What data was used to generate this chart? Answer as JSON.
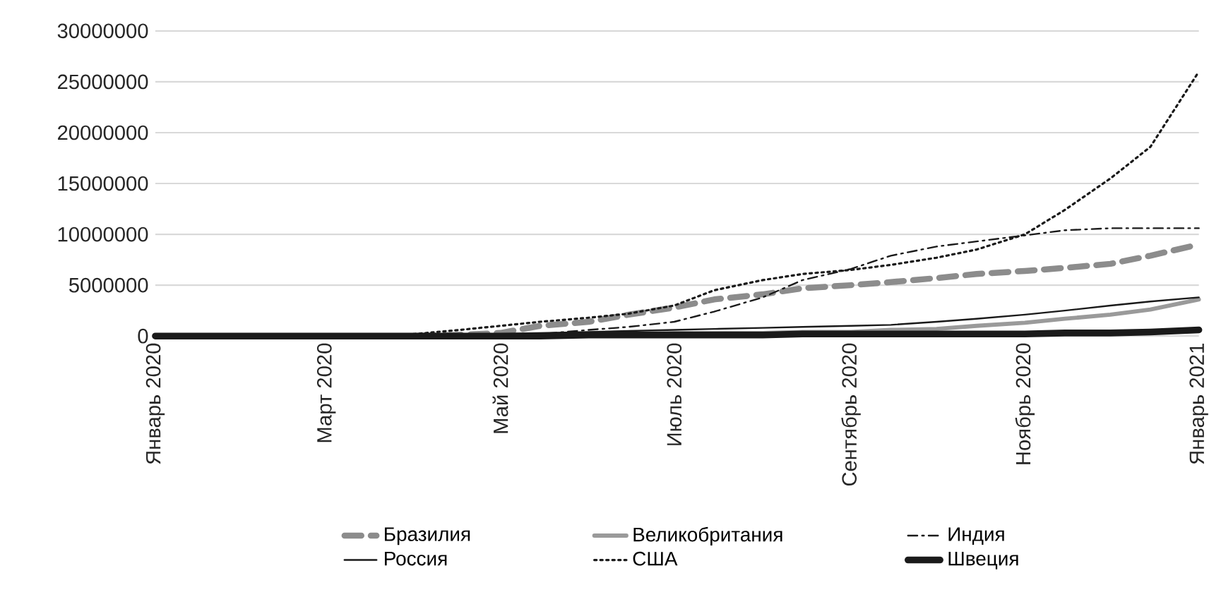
{
  "chart_data": {
    "type": "line",
    "x": [
      "2020-01-01",
      "2020-02-01",
      "2020-03-01",
      "2020-03-13",
      "2020-04-01",
      "2020-04-15",
      "2020-05-01",
      "2020-05-15",
      "2020-06-01",
      "2020-06-15",
      "2020-07-01",
      "2020-07-15",
      "2020-08-01",
      "2020-08-15",
      "2020-09-01",
      "2020-09-15",
      "2020-10-01",
      "2020-10-15",
      "2020-11-01",
      "2020-11-15",
      "2020-12-01",
      "2020-12-15",
      "2021-01-01"
    ],
    "series": [
      {
        "name": "Бразилия",
        "color": "#8c8c8c",
        "line_style": "dashed",
        "values": [
          0,
          0,
          0,
          0,
          0,
          100000,
          300000,
          1000000,
          1400000,
          2100000,
          2800000,
          3600000,
          4100000,
          4700000,
          5000000,
          5300000,
          5700000,
          6100000,
          6400000,
          6700000,
          7100000,
          7900000,
          9000000
        ]
      },
      {
        "name": "Великобритания",
        "color": "#9a9a9a",
        "line_style": "solid",
        "values": [
          0,
          0,
          0,
          0,
          0,
          0,
          100000,
          100000,
          200000,
          200000,
          300000,
          300000,
          300000,
          400000,
          400000,
          600000,
          700000,
          1000000,
          1300000,
          1700000,
          2100000,
          2600000,
          3600000
        ]
      },
      {
        "name": "Индия",
        "color": "#1a1a1a",
        "line_style": "dashdot",
        "values": [
          0,
          0,
          0,
          0,
          0,
          0,
          0,
          200000,
          600000,
          900000,
          1400000,
          2400000,
          3800000,
          5500000,
          6600000,
          7900000,
          8800000,
          9300000,
          9900000,
          10400000,
          10600000,
          10600000,
          10600000
        ]
      },
      {
        "name": "Россия",
        "color": "#1a1a1a",
        "line_style": "solid",
        "values": [
          0,
          0,
          0,
          0,
          0,
          0,
          200000,
          300000,
          400000,
          500000,
          600000,
          700000,
          800000,
          900000,
          1000000,
          1100000,
          1400000,
          1700000,
          2100000,
          2500000,
          3000000,
          3400000,
          3800000
        ]
      },
      {
        "name": "США",
        "color": "#1a1a1a",
        "line_style": "dotted",
        "values": [
          0,
          0,
          0,
          0,
          200000,
          550000,
          1000000,
          1400000,
          1800000,
          2200000,
          3000000,
          4500000,
          5500000,
          6100000,
          6500000,
          7000000,
          7700000,
          8500000,
          10000000,
          12400000,
          15500000,
          18600000,
          26000000
        ]
      },
      {
        "name": "Швеция",
        "color": "#1a1a1a",
        "line_style": "solid",
        "values": [
          0,
          0,
          0,
          0,
          0,
          0,
          0,
          0,
          100000,
          100000,
          100000,
          100000,
          100000,
          200000,
          200000,
          200000,
          200000,
          200000,
          200000,
          300000,
          300000,
          400000,
          600000
        ]
      }
    ],
    "xlim": [
      "2020-01-01",
      "2021-01-01"
    ],
    "xticks": [
      {
        "value": "2020-01-01",
        "label": "Январь 2020"
      },
      {
        "value": "2020-03-01",
        "label": "Март 2020"
      },
      {
        "value": "2020-05-01",
        "label": "Май 2020"
      },
      {
        "value": "2020-07-01",
        "label": "Июль 2020"
      },
      {
        "value": "2020-09-01",
        "label": "Сентябрь 2020"
      },
      {
        "value": "2020-11-01",
        "label": "Ноябрь 2020"
      },
      {
        "value": "2021-01-01",
        "label": "Январь 2021"
      }
    ],
    "ylim": [
      0,
      30000000
    ],
    "yticks": [
      0,
      5000000,
      10000000,
      15000000,
      20000000,
      25000000,
      30000000
    ],
    "grid": "y",
    "legend": "bottom",
    "marker": "none"
  }
}
